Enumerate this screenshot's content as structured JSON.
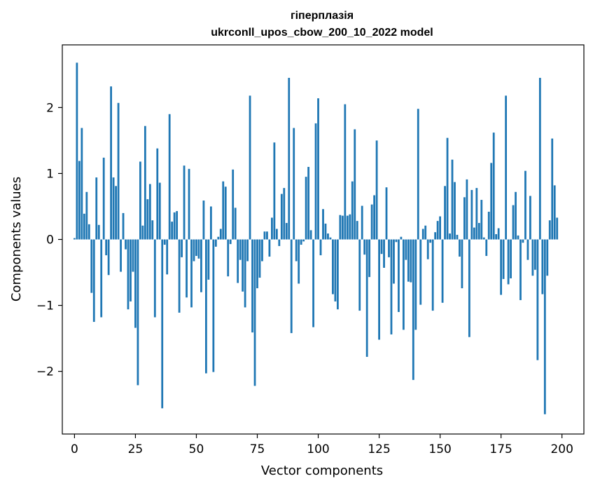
{
  "chart_data": {
    "type": "bar",
    "title": "гіперплазія",
    "subtitle": "ukrconll_upos_cbow_200_10_2022 model",
    "xlabel": "Vector components",
    "ylabel": "Components values",
    "xlim": [
      -5,
      209
    ],
    "ylim": [
      -2.95,
      2.95
    ],
    "xticks": [
      0,
      25,
      50,
      75,
      100,
      125,
      150,
      175,
      200
    ],
    "xtick_labels": [
      "0",
      "25",
      "50",
      "75",
      "100",
      "125",
      "150",
      "175",
      "200"
    ],
    "yticks": [
      -2,
      -1,
      0,
      1,
      2
    ],
    "ytick_labels": [
      "−2",
      "−1",
      "0",
      "1",
      "2"
    ],
    "bar_color": "#1f77b4",
    "grid": false,
    "values": [
      0.02,
      2.68,
      1.19,
      1.69,
      0.39,
      0.72,
      0.23,
      -0.81,
      -1.25,
      0.94,
      0.22,
      -1.18,
      1.24,
      -0.24,
      -0.54,
      2.32,
      0.94,
      0.81,
      2.07,
      -0.49,
      0.4,
      -0.15,
      -1.06,
      -0.94,
      -0.49,
      -1.34,
      -2.21,
      1.18,
      0.21,
      1.72,
      0.61,
      0.84,
      0.29,
      -1.18,
      1.38,
      0.86,
      -2.56,
      -0.08,
      -0.53,
      1.9,
      0.27,
      0.41,
      0.43,
      -1.11,
      -0.27,
      1.12,
      -0.88,
      1.07,
      -1.03,
      -0.33,
      -0.25,
      -0.29,
      -0.8,
      0.59,
      -2.03,
      -0.61,
      0.5,
      -2.01,
      -0.11,
      0.04,
      0.16,
      0.88,
      0.8,
      -0.56,
      -0.07,
      1.06,
      0.48,
      -0.66,
      -0.31,
      -0.79,
      -1.03,
      -0.33,
      2.18,
      -1.41,
      -2.22,
      -0.74,
      -0.58,
      -0.33,
      0.12,
      0.12,
      -0.26,
      0.33,
      1.47,
      0.16,
      -0.1,
      0.69,
      0.78,
      0.25,
      2.45,
      -1.42,
      1.69,
      -0.33,
      -0.67,
      -0.08,
      -0.03,
      0.95,
      1.1,
      0.14,
      -1.33,
      1.76,
      2.14,
      -0.24,
      0.46,
      0.24,
      0.09,
      0.03,
      -0.83,
      -0.94,
      -1.06,
      0.37,
      0.36,
      2.05,
      0.36,
      0.38,
      0.88,
      1.67,
      0.28,
      -1.08,
      0.51,
      -0.23,
      -1.78,
      -0.57,
      0.53,
      0.67,
      1.5,
      -1.52,
      -0.22,
      -0.43,
      0.79,
      -0.27,
      -1.44,
      -0.67,
      -0.04,
      -1.1,
      0.04,
      -1.37,
      -0.31,
      -0.64,
      -0.65,
      -2.13,
      -1.37,
      1.98,
      -0.99,
      0.16,
      0.21,
      -0.3,
      -0.05,
      -1.08,
      0.11,
      0.28,
      0.35,
      -0.96,
      0.81,
      1.54,
      0.09,
      1.21,
      0.87,
      0.07,
      -0.26,
      -0.74,
      0.64,
      0.91,
      -1.48,
      0.75,
      0.18,
      0.78,
      0.25,
      0.6,
      0.03,
      -0.25,
      0.42,
      1.16,
      1.62,
      0.08,
      0.17,
      -0.84,
      -0.6,
      2.18,
      -0.68,
      -0.59,
      0.52,
      0.72,
      0.06,
      -0.92,
      -0.05,
      1.04,
      -0.31,
      0.66,
      -0.55,
      -0.46,
      -1.83,
      2.45,
      -0.83,
      -2.65,
      -0.55,
      0.29,
      1.53,
      0.82,
      0.33
    ]
  }
}
